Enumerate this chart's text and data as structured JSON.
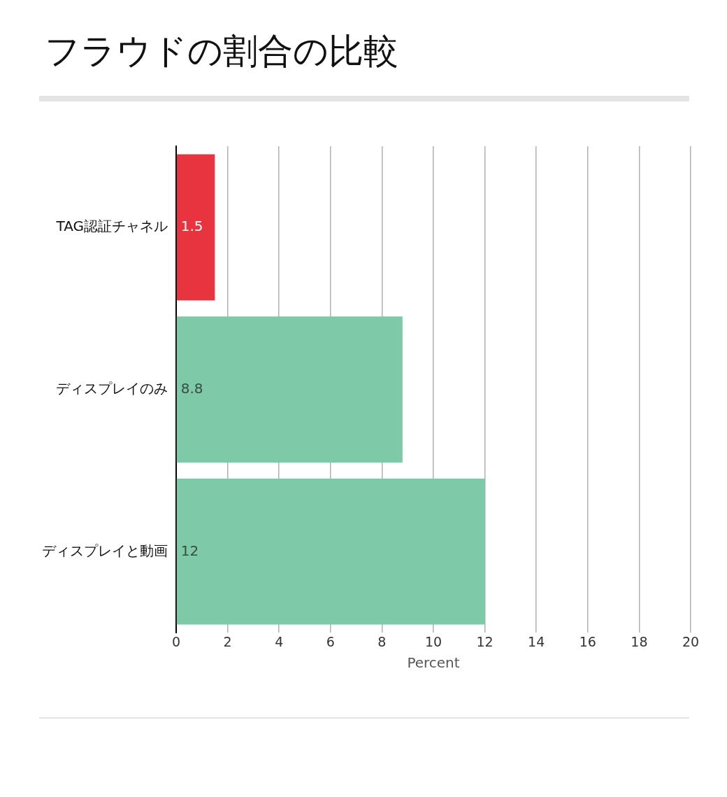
{
  "chart_data": {
    "type": "bar",
    "orientation": "horizontal",
    "title": "フラウドの割合の比較",
    "categories": [
      "TAG認証チャネル",
      "ディスプレイのみ",
      "ディスプレイと動画"
    ],
    "values": [
      1.5,
      8.8,
      12
    ],
    "colors": [
      "#e8343f",
      "#7ecaa8",
      "#7ecaa8"
    ],
    "xlim": [
      0,
      20
    ],
    "xticks": [
      0,
      2,
      4,
      6,
      8,
      10,
      12,
      14,
      16,
      18,
      20
    ],
    "xlabel": "Percent",
    "grid": "x",
    "data_labels": true,
    "legend": false
  }
}
